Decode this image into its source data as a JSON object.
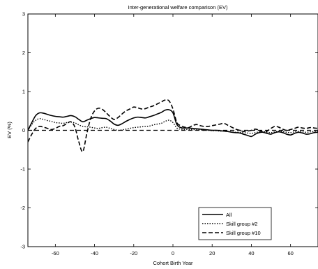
{
  "chart_data": {
    "type": "line",
    "title": "Inter-generational welfare comparison (EV)",
    "xlabel": "Cohort Birth Year",
    "ylabel": "EV (%)",
    "xlim": [
      -74,
      74
    ],
    "ylim": [
      -3,
      3
    ],
    "xticks": [
      -60,
      -40,
      -20,
      0,
      20,
      40,
      60
    ],
    "yticks": [
      -3,
      -2,
      -1,
      0,
      1,
      2,
      3
    ],
    "xtick_labels": [
      "-60",
      "-40",
      "-20",
      "0",
      "20",
      "40",
      "60"
    ],
    "ytick_labels": [
      "-3",
      "-2",
      "-1",
      "0",
      "1",
      "2",
      "3"
    ],
    "grid": false,
    "legend_position": "bottom-right",
    "zero_line": {
      "y": 0,
      "style": "dashed"
    },
    "series": [
      {
        "name": "All",
        "style": "solid",
        "x": [
          -74,
          -72,
          -70,
          -68,
          -66,
          -64,
          -62,
          -60,
          -58,
          -56,
          -54,
          -52,
          -50,
          -48,
          -46,
          -44,
          -42,
          -40,
          -38,
          -36,
          -34,
          -32,
          -30,
          -28,
          -26,
          -24,
          -22,
          -20,
          -18,
          -16,
          -14,
          -12,
          -10,
          -8,
          -6,
          -4,
          -2,
          0,
          2,
          4,
          6,
          8,
          10,
          12,
          14,
          16,
          18,
          20,
          22,
          24,
          26,
          28,
          30,
          32,
          34,
          36,
          38,
          40,
          42,
          44,
          46,
          48,
          50,
          52,
          54,
          56,
          58,
          60,
          62,
          64,
          66,
          68,
          70,
          72,
          74
        ],
        "y": [
          0.0,
          0.2,
          0.38,
          0.45,
          0.44,
          0.41,
          0.38,
          0.36,
          0.35,
          0.34,
          0.36,
          0.38,
          0.35,
          0.28,
          0.22,
          0.26,
          0.3,
          0.33,
          0.32,
          0.31,
          0.3,
          0.24,
          0.16,
          0.13,
          0.17,
          0.23,
          0.28,
          0.32,
          0.34,
          0.33,
          0.32,
          0.35,
          0.38,
          0.42,
          0.46,
          0.52,
          0.53,
          0.45,
          0.15,
          0.07,
          0.06,
          0.06,
          0.05,
          0.04,
          0.03,
          0.02,
          0.01,
          0.0,
          0.0,
          -0.01,
          -0.02,
          -0.03,
          -0.05,
          -0.06,
          -0.07,
          -0.1,
          -0.13,
          -0.16,
          -0.1,
          -0.06,
          -0.05,
          -0.08,
          -0.1,
          -0.06,
          -0.04,
          -0.06,
          -0.1,
          -0.12,
          -0.08,
          -0.05,
          -0.07,
          -0.1,
          -0.09,
          -0.06,
          -0.05
        ]
      },
      {
        "name": "Skill group #2",
        "style": "dotted",
        "x": [
          -74,
          -72,
          -70,
          -68,
          -66,
          -64,
          -62,
          -60,
          -58,
          -56,
          -54,
          -52,
          -50,
          -48,
          -46,
          -44,
          -42,
          -40,
          -38,
          -36,
          -34,
          -32,
          -30,
          -28,
          -26,
          -24,
          -22,
          -20,
          -18,
          -16,
          -14,
          -12,
          -10,
          -8,
          -6,
          -4,
          -2,
          0,
          2,
          4,
          6,
          8,
          10,
          12,
          14,
          16,
          18,
          20,
          22,
          24,
          26,
          28,
          30,
          32,
          34,
          36,
          38,
          40,
          42,
          44,
          46,
          48,
          50,
          52,
          54,
          56,
          58,
          60,
          62,
          64,
          66,
          68,
          70,
          72,
          74
        ],
        "y": [
          0.0,
          0.15,
          0.26,
          0.3,
          0.28,
          0.25,
          0.23,
          0.2,
          0.19,
          0.18,
          0.2,
          0.21,
          0.19,
          0.14,
          0.1,
          0.09,
          0.08,
          0.06,
          0.05,
          0.07,
          0.08,
          0.05,
          0.02,
          0.0,
          0.01,
          0.03,
          0.05,
          0.07,
          0.08,
          0.09,
          0.1,
          0.11,
          0.14,
          0.16,
          0.18,
          0.23,
          0.26,
          0.2,
          0.06,
          0.03,
          0.02,
          0.02,
          0.02,
          0.01,
          0.01,
          0.0,
          0.0,
          -0.01,
          -0.01,
          -0.02,
          -0.02,
          -0.03,
          -0.04,
          -0.05,
          -0.05,
          -0.06,
          -0.07,
          -0.08,
          -0.06,
          -0.04,
          -0.03,
          -0.05,
          -0.06,
          -0.04,
          -0.02,
          -0.03,
          -0.05,
          -0.06,
          -0.04,
          -0.03,
          -0.04,
          -0.05,
          -0.04,
          -0.03,
          -0.03
        ]
      },
      {
        "name": "Skill group #10",
        "style": "dashed",
        "x": [
          -74,
          -72,
          -70,
          -68,
          -66,
          -64,
          -62,
          -60,
          -58,
          -56,
          -54,
          -52,
          -50,
          -48,
          -46,
          -44,
          -42,
          -40,
          -38,
          -36,
          -34,
          -32,
          -30,
          -28,
          -26,
          -24,
          -22,
          -20,
          -18,
          -16,
          -14,
          -12,
          -10,
          -8,
          -6,
          -4,
          -2,
          0,
          2,
          4,
          6,
          8,
          10,
          12,
          14,
          16,
          18,
          20,
          22,
          24,
          26,
          28,
          30,
          32,
          34,
          36,
          38,
          40,
          42,
          44,
          46,
          48,
          50,
          52,
          54,
          56,
          58,
          60,
          62,
          64,
          66,
          68,
          70,
          72,
          74
        ],
        "y": [
          -0.3,
          -0.1,
          0.05,
          0.1,
          0.08,
          0.05,
          0.02,
          0.05,
          0.1,
          0.12,
          0.18,
          0.22,
          0.08,
          -0.3,
          -0.55,
          -0.1,
          0.3,
          0.5,
          0.57,
          0.54,
          0.45,
          0.35,
          0.28,
          0.33,
          0.42,
          0.5,
          0.55,
          0.6,
          0.58,
          0.55,
          0.56,
          0.6,
          0.63,
          0.68,
          0.73,
          0.78,
          0.76,
          0.55,
          0.2,
          0.12,
          0.08,
          0.07,
          0.12,
          0.15,
          0.12,
          0.1,
          0.1,
          0.12,
          0.14,
          0.16,
          0.18,
          0.13,
          0.08,
          0.03,
          0.0,
          -0.03,
          -0.02,
          0.0,
          0.03,
          0.0,
          -0.05,
          -0.02,
          0.05,
          0.1,
          0.08,
          0.03,
          0.0,
          0.02,
          0.05,
          0.08,
          0.06,
          0.05,
          0.07,
          0.06,
          0.05
        ]
      }
    ]
  }
}
